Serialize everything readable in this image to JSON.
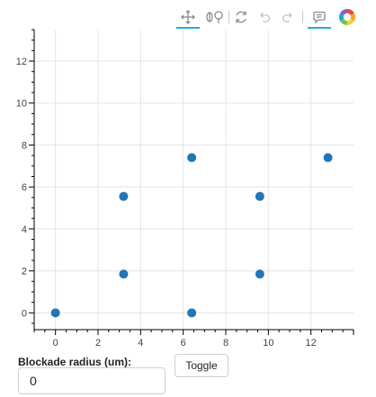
{
  "toolbar": {
    "tools": [
      {
        "icon": "pan-icon",
        "active": true
      },
      {
        "icon": "wheel-zoom-icon",
        "active": false
      },
      {
        "icon": "reset-icon",
        "active": false
      },
      {
        "icon": "undo-icon",
        "active": false
      },
      {
        "icon": "redo-icon",
        "active": false
      },
      {
        "icon": "hover-icon",
        "active": true
      },
      {
        "icon": "bokeh-logo",
        "active": false
      }
    ],
    "accent_color": "#26aae1"
  },
  "chart_data": {
    "type": "scatter",
    "x": [
      0,
      3.2,
      3.2,
      6.4,
      6.4,
      9.6,
      9.6,
      12.8
    ],
    "y": [
      0,
      1.85,
      5.55,
      0,
      7.4,
      1.85,
      5.55,
      7.4
    ],
    "xlim": [
      -1,
      14
    ],
    "ylim": [
      -0.8,
      13.5
    ],
    "x_ticks": [
      0,
      2,
      4,
      6,
      8,
      10,
      12
    ],
    "y_ticks": [
      0,
      2,
      4,
      6,
      8,
      10,
      12
    ],
    "grid": true,
    "marker_color": "#1f77b4",
    "title": "",
    "xlabel": "",
    "ylabel": ""
  },
  "controls": {
    "radius_label": "Blockade radius (um):",
    "radius_value": "0",
    "toggle_label": "Toggle"
  }
}
